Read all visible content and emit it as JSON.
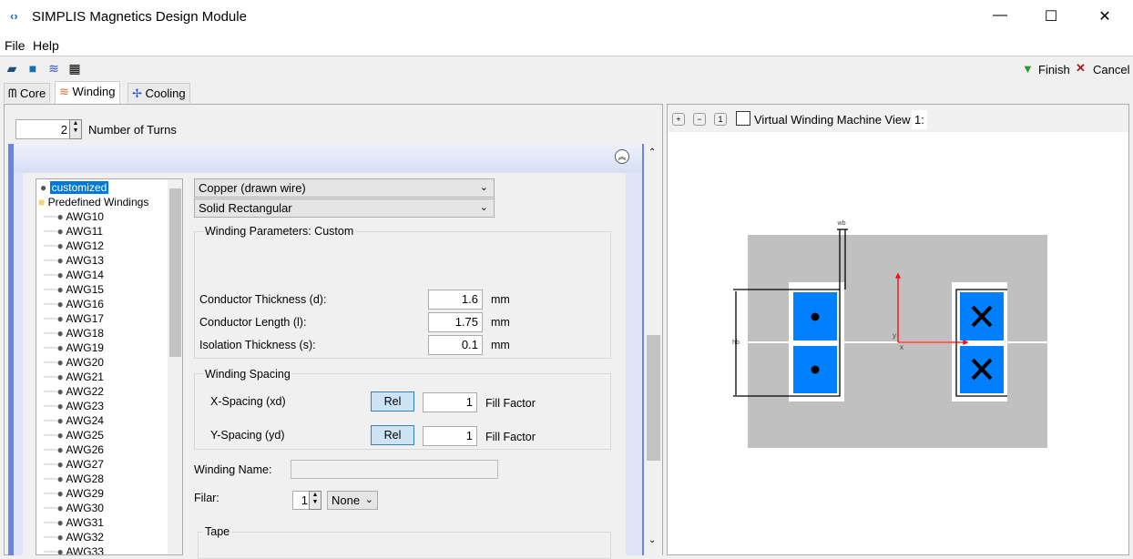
{
  "window": {
    "title": "SIMPLIS Magnetics Design Module",
    "app_icon": "double-chevron-icon",
    "controls": [
      "minimize",
      "maximize",
      "close"
    ]
  },
  "menu": [
    "File",
    "Help"
  ],
  "toolbar": {
    "icons": [
      "open-icon",
      "save-icon",
      "stack-icon",
      "table-icon"
    ],
    "finish": "Finish",
    "cancel": "Cancel"
  },
  "tabs": [
    {
      "label": "Core",
      "icon": "core-icon"
    },
    {
      "label": "Winding",
      "icon": "winding-icon",
      "selected": true
    },
    {
      "label": "Cooling",
      "icon": "fan-icon"
    }
  ],
  "turns": {
    "value": "2",
    "label": "Number of Turns"
  },
  "tree": {
    "selected": "customized",
    "folder": "Predefined Windings",
    "items": [
      "AWG10",
      "AWG11",
      "AWG12",
      "AWG13",
      "AWG14",
      "AWG15",
      "AWG16",
      "AWG17",
      "AWG18",
      "AWG19",
      "AWG20",
      "AWG21",
      "AWG22",
      "AWG23",
      "AWG24",
      "AWG25",
      "AWG26",
      "AWG27",
      "AWG28",
      "AWG29",
      "AWG30",
      "AWG31",
      "AWG32",
      "AWG33"
    ]
  },
  "form": {
    "material": "Copper (drawn wire)",
    "shape": "Solid Rectangular",
    "params_title": "Winding Parameters: Custom",
    "params": [
      {
        "label": "Conductor Thickness (d):",
        "value": "1.6",
        "unit": "mm"
      },
      {
        "label": "Conductor Length (l):",
        "value": "1.75",
        "unit": "mm"
      },
      {
        "label": "Isolation Thickness (s):",
        "value": "0.1",
        "unit": "mm"
      }
    ],
    "spacing_title": "Winding Spacing",
    "spacing": [
      {
        "label": "X-Spacing (xd)",
        "button": "Rel",
        "value": "1",
        "unit": "Fill Factor"
      },
      {
        "label": "Y-Spacing (yd)",
        "button": "Rel",
        "value": "1",
        "unit": "Fill Factor"
      }
    ],
    "name_label": "Winding Name:",
    "name_value": "",
    "filar_label": "Filar:",
    "filar_value": "1",
    "filar_option": "None",
    "tape_title": "Tape"
  },
  "view": {
    "checkbox_label": "Virtual Winding Machine View",
    "checked": false,
    "zoom": "1:",
    "buttons": [
      "zoom-in",
      "zoom-out",
      "zoom-reset"
    ]
  },
  "diagram": {
    "labels": {
      "wb": "wb",
      "hb": "hb",
      "x": "x",
      "y": "y"
    },
    "colors": {
      "core": "#c0c0c0",
      "conductor": "#0080ff",
      "axis": "#ff0000"
    }
  }
}
